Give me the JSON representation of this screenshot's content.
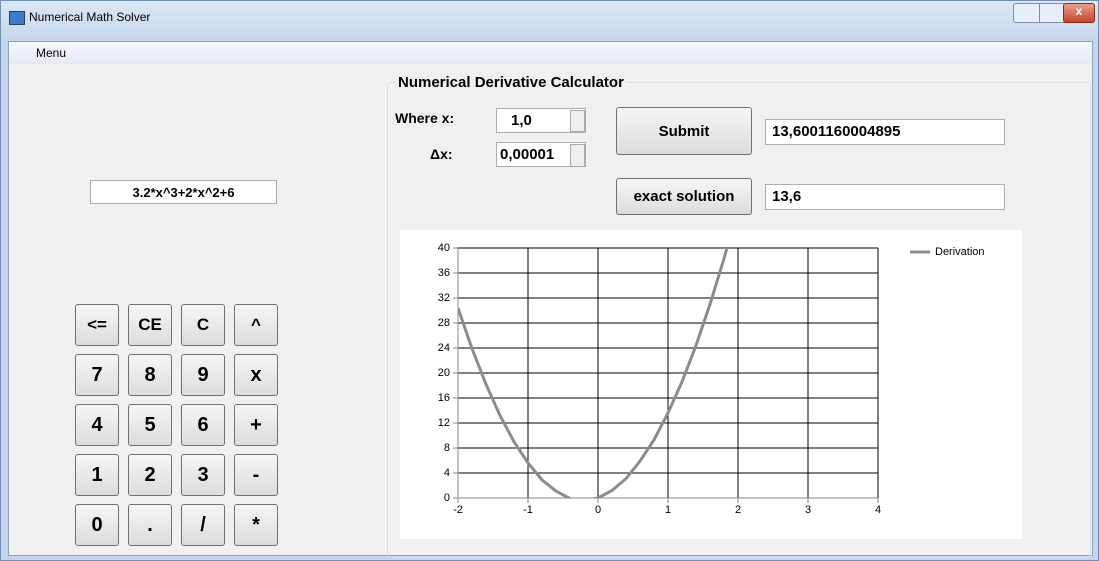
{
  "window": {
    "title": "Numerical Math Solver"
  },
  "menu": [
    "Menu"
  ],
  "expression": "3.2*x^3+2*x^2+6",
  "keypad": [
    "<=",
    "CE",
    "C",
    "^",
    "7",
    "8",
    "9",
    "x",
    "4",
    "5",
    "6",
    "+",
    "1",
    "2",
    "3",
    "-",
    "0",
    ".",
    "/",
    "*"
  ],
  "group": {
    "title": "Numerical Derivative Calculator",
    "where_x_label": "Where x:",
    "where_x_value": "1,0",
    "dx_label": "Δx:",
    "dx_value": "0,00001",
    "submit": "Submit",
    "result": "13,6001160004895",
    "exact_button": "exact solution",
    "exact_result": "13,6"
  },
  "chart_data": {
    "type": "line",
    "x": [
      -2,
      -1.8,
      -1.6,
      -1.4,
      -1.2,
      -1,
      -0.8,
      -0.6,
      -0.4,
      -0.2,
      0,
      0.2,
      0.4,
      0.6,
      0.8,
      1,
      1.2,
      1.4,
      1.6,
      1.8,
      2
    ],
    "series": [
      {
        "name": "Derivation",
        "color": "#8c8c8c",
        "values": [
          30.4,
          23.9,
          18.2,
          13.2,
          9.0,
          5.6,
          2.9,
          1.1,
          -0.1,
          -0.4,
          0,
          1.2,
          3.1,
          5.9,
          9.3,
          13.6,
          18.6,
          24.4,
          31.0,
          38.3,
          46.4
        ]
      }
    ],
    "xlim": [
      -2,
      4
    ],
    "xticks": [
      -2,
      -1,
      0,
      1,
      2,
      3,
      4
    ],
    "ylim": [
      0,
      40
    ],
    "yticks": [
      0,
      4,
      8,
      12,
      16,
      20,
      24,
      28,
      32,
      36,
      40
    ],
    "grid": true,
    "legend": "top-right"
  }
}
